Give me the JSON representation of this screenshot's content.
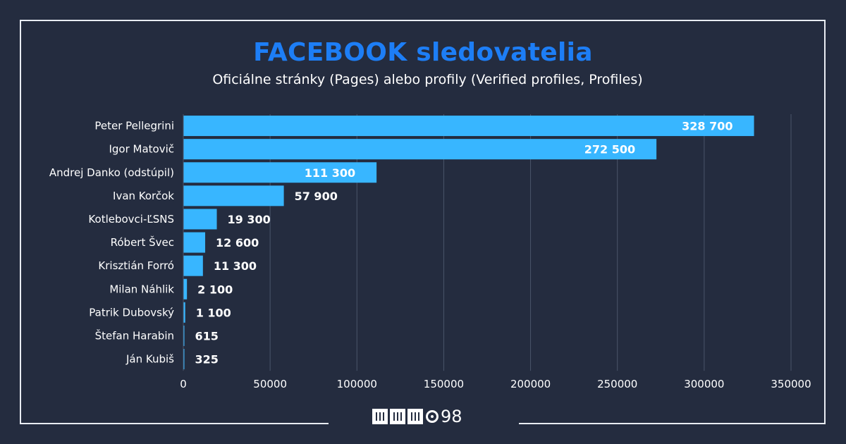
{
  "header": {
    "title": "FACEBOOK sledovatelia",
    "subtitle": "Oficiálne stránky (Pages) alebo profily (Verified profiles, Profiles)"
  },
  "logo": {
    "text": "98"
  },
  "colors": {
    "background": "#242c3f",
    "bar": "#38b6ff",
    "title": "#1d7ef6",
    "text": "#ffffff",
    "grid": "#4a5569"
  },
  "chart_data": {
    "type": "bar",
    "orientation": "horizontal",
    "categories": [
      "Peter Pellegrini",
      "Igor Matovič",
      "Andrej Danko (odstúpil)",
      "Ivan Korčok",
      "Kotlebovci-ĽSNS",
      "Róbert Švec",
      "Krisztián Forró",
      "Milan Náhlik",
      "Patrik Dubovský",
      "Štefan Harabin",
      "Ján Kubiš"
    ],
    "values": [
      328700,
      272500,
      111300,
      57900,
      19300,
      12600,
      11300,
      2100,
      1100,
      615,
      325
    ],
    "data_labels": [
      "328 700",
      "272 500",
      "111 300",
      "57 900",
      "19 300",
      "12 600",
      "11 300",
      "2 100",
      "1 100",
      "615",
      "325"
    ],
    "xlim": [
      0,
      350000
    ],
    "xticks": [
      0,
      50000,
      100000,
      150000,
      200000,
      250000,
      300000,
      350000
    ],
    "xtick_labels": [
      "0",
      "50000",
      "100000",
      "150000",
      "200000",
      "250000",
      "300000",
      "350000"
    ],
    "grid": true
  }
}
